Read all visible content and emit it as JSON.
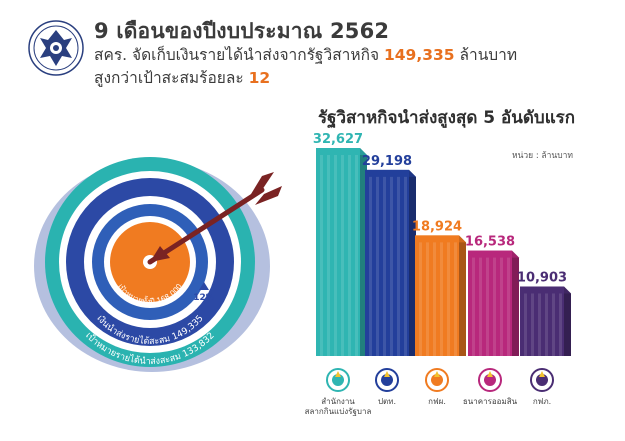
{
  "header": {
    "title": "9 เดือนของปีงบประมาณ 2562",
    "line2_prefix": "สคร. จัดเก็บเงินรายได้นำส่งจากรัฐวิสาหกิจ ",
    "line2_amount": "149,335",
    "line2_suffix": " ล้านบาท",
    "line3_prefix": "สูงกว่าเป้าสะสมร้อยละ ",
    "line3_value": "12"
  },
  "target": {
    "inner_label": "เป้าหมายทั้งปี 168,000",
    "middle_label": "เงินนำส่งรายได้สะสม 149,335",
    "outer_label": "เป้าหมายรายได้นำส่งสะสม 133,832",
    "percent_label": "12%"
  },
  "chart_data": {
    "type": "bar",
    "title": "รัฐวิสาหกิจนำส่งสูงสุด 5 อันดับแรก",
    "unit_label": "หน่วย : ล้านบาท",
    "categories": [
      "สำนักงานสลากกินแบ่งรัฐบาล",
      "ปตท.",
      "กฟผ.",
      "ธนาคารออมสิน",
      "กฟภ."
    ],
    "category_lines": [
      [
        "สำนักงาน",
        "สลากกินแบ่งรัฐบาล"
      ],
      [
        "ปตท."
      ],
      [
        "กฟผ."
      ],
      [
        "ธนาคารออมสิน"
      ],
      [
        "กฟภ."
      ]
    ],
    "values": [
      32627,
      29198,
      18924,
      16538,
      10903
    ],
    "value_labels": [
      "32,627",
      "29,198",
      "18,924",
      "16,538",
      "10,903"
    ],
    "ylim": [
      0,
      32627
    ],
    "colors": [
      "#2fb5b2",
      "#233f9b",
      "#f07b21",
      "#b8287c",
      "#4a2d73"
    ],
    "icons": [
      "lottery-office-logo-icon",
      "ptt-logo-icon",
      "egat-logo-icon",
      "gsb-logo-icon",
      "pea-logo-icon"
    ]
  }
}
